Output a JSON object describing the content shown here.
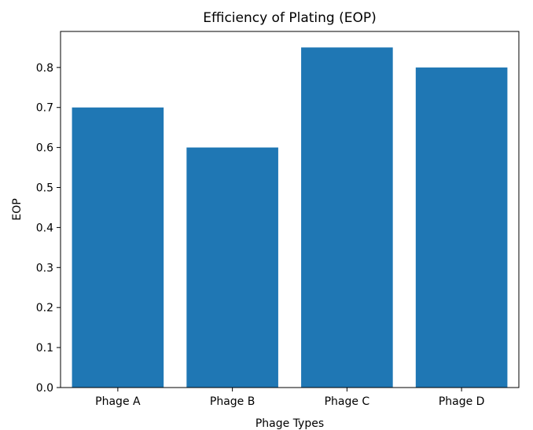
{
  "chart_data": {
    "type": "bar",
    "title": "Efficiency of Plating (EOP)",
    "xlabel": "Phage Types",
    "ylabel": "EOP",
    "categories": [
      "Phage A",
      "Phage B",
      "Phage C",
      "Phage D"
    ],
    "values": [
      0.7,
      0.6,
      0.85,
      0.8
    ],
    "ylim": [
      0,
      0.89
    ],
    "yticks": [
      "0.0",
      "0.1",
      "0.2",
      "0.3",
      "0.4",
      "0.5",
      "0.6",
      "0.7",
      "0.8"
    ],
    "bar_color": "#1f77b4",
    "grid": false,
    "legend": "none"
  }
}
